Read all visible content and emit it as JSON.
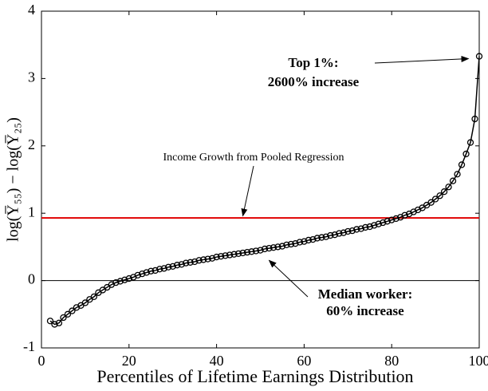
{
  "chart_data": {
    "type": "line",
    "xlabel": "Percentiles of Lifetime Earnings Distribution",
    "ylabel": "log(Y̅₅₅) − log(Y̅₂₅)",
    "x": [
      2,
      3,
      4,
      5,
      6,
      7,
      8,
      9,
      10,
      11,
      12,
      13,
      14,
      15,
      16,
      17,
      18,
      19,
      20,
      21,
      22,
      23,
      24,
      25,
      26,
      27,
      28,
      29,
      30,
      31,
      32,
      33,
      34,
      35,
      36,
      37,
      38,
      39,
      40,
      41,
      42,
      43,
      44,
      45,
      46,
      47,
      48,
      49,
      50,
      51,
      52,
      53,
      54,
      55,
      56,
      57,
      58,
      59,
      60,
      61,
      62,
      63,
      64,
      65,
      66,
      67,
      68,
      69,
      70,
      71,
      72,
      73,
      74,
      75,
      76,
      77,
      78,
      79,
      80,
      81,
      82,
      83,
      84,
      85,
      86,
      87,
      88,
      89,
      90,
      91,
      92,
      93,
      94,
      95,
      96,
      97,
      98,
      99,
      100
    ],
    "series": [
      {
        "color": "#000000",
        "values": [
          -0.6,
          -0.65,
          -0.63,
          -0.55,
          -0.5,
          -0.45,
          -0.4,
          -0.37,
          -0.33,
          -0.28,
          -0.24,
          -0.18,
          -0.14,
          -0.1,
          -0.06,
          -0.03,
          -0.01,
          0.01,
          0.03,
          0.05,
          0.08,
          0.1,
          0.12,
          0.14,
          0.15,
          0.17,
          0.18,
          0.2,
          0.21,
          0.23,
          0.24,
          0.26,
          0.27,
          0.28,
          0.3,
          0.31,
          0.32,
          0.33,
          0.35,
          0.36,
          0.37,
          0.38,
          0.39,
          0.4,
          0.41,
          0.42,
          0.43,
          0.44,
          0.45,
          0.47,
          0.48,
          0.49,
          0.5,
          0.51,
          0.53,
          0.54,
          0.55,
          0.57,
          0.58,
          0.6,
          0.61,
          0.63,
          0.64,
          0.65,
          0.67,
          0.68,
          0.7,
          0.71,
          0.73,
          0.74,
          0.76,
          0.77,
          0.79,
          0.8,
          0.82,
          0.84,
          0.86,
          0.88,
          0.9,
          0.92,
          0.94,
          0.97,
          0.99,
          1.02,
          1.05,
          1.08,
          1.12,
          1.16,
          1.21,
          1.26,
          1.32,
          1.39,
          1.48,
          1.58,
          1.72,
          1.88,
          2.05,
          2.4,
          3.33
        ]
      }
    ],
    "hlines": [
      {
        "y": 0.93,
        "color": "#e00000"
      },
      {
        "y": 0,
        "color": "#000000"
      }
    ],
    "annotations": [
      {
        "lines": [
          "Top 1%:",
          "2600% increase"
        ],
        "bold": true,
        "target": [
          99,
          3.33
        ]
      },
      {
        "lines": [
          "Income Growth from Pooled Regression"
        ],
        "bold": false,
        "target": [
          46,
          0.96
        ]
      },
      {
        "lines": [
          "Median worker:",
          "60% increase"
        ],
        "bold": true,
        "target": [
          52,
          0.3
        ]
      }
    ],
    "xlim": [
      0,
      100
    ],
    "xticks": [
      0,
      20,
      40,
      60,
      80,
      100
    ],
    "ylim": [
      -1,
      4
    ],
    "yticks": [
      -1,
      0,
      1,
      2,
      3,
      4
    ]
  }
}
